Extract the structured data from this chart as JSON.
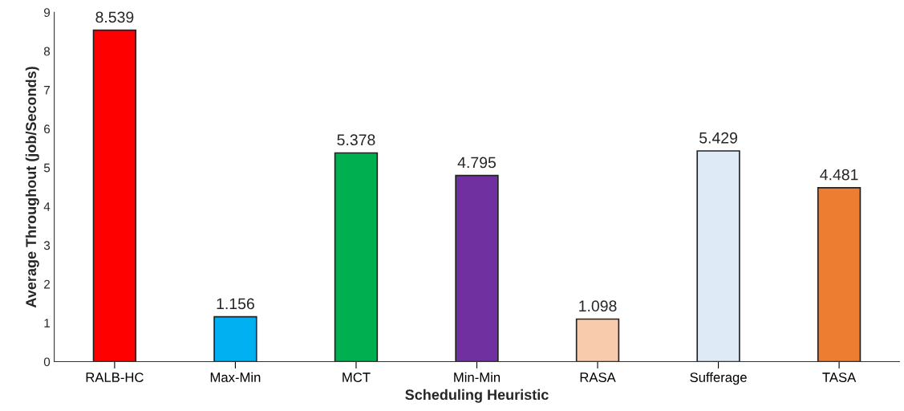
{
  "chart_data": {
    "type": "bar",
    "categories": [
      "RALB-HC",
      "Max-Min",
      "MCT",
      "Min-Min",
      "RASA",
      "Sufferage",
      "TASA"
    ],
    "values": [
      8.539,
      1.156,
      5.378,
      4.795,
      1.098,
      5.429,
      4.481
    ],
    "colors": [
      "#ff0000",
      "#00b0f0",
      "#00b050",
      "#7030a0",
      "#f8cbad",
      "#deebf7",
      "#ed7d31"
    ],
    "xlabel": "Scheduling Heuristic",
    "ylabel": "Average Throughout (job/Seconds)",
    "ylim": [
      0,
      9
    ],
    "yticks": [
      0,
      1,
      2,
      3,
      4,
      5,
      6,
      7,
      8,
      9
    ],
    "data_labels": true,
    "grid": false,
    "legend": false
  }
}
